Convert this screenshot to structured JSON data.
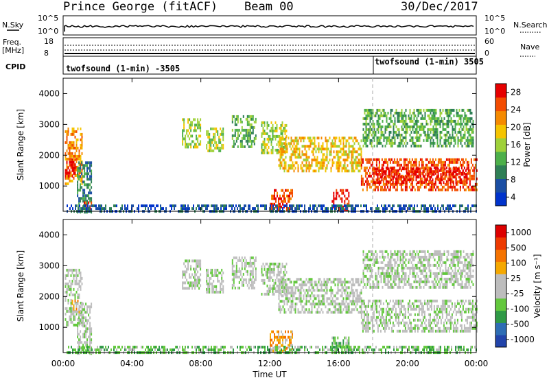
{
  "header": {
    "station": "Prince George (fitACF)",
    "beam": "Beam 00",
    "date": "30/Dec/2017"
  },
  "strips": {
    "nsky": {
      "left_label": "N.Sky",
      "right_label": "N.Search",
      "left_ticks": [
        "10^5",
        "10^0"
      ],
      "right_ticks": [
        "10^5",
        "10^0"
      ]
    },
    "freq": {
      "left_label_1": "Freq.",
      "left_label_2": "[MHz]",
      "right_label": "Nave",
      "left_ticks": [
        "18",
        "8"
      ],
      "right_ticks": [
        "60",
        "0"
      ]
    },
    "cpid": {
      "label": "CPID",
      "mode_1": "twofsound (1-min) -3505",
      "mode_2": "twofsound (1-min) 3505"
    }
  },
  "colors": {
    "power_scale": [
      "#0033cc",
      "#1b4ea3",
      "#2f7f56",
      "#4db04a",
      "#9fd13a",
      "#f5c400",
      "#f58a00",
      "#f34c00",
      "#e60000"
    ],
    "velocity_scale": [
      "#2244aa",
      "#2e6db4",
      "#2f9a46",
      "#63c83d",
      "#bdbdbd",
      "#bdbdbd",
      "#f5a800",
      "#f57300",
      "#ee3a00",
      "#dd0000"
    ],
    "ground_scatter": "#bdbdbd"
  },
  "chart_data": [
    {
      "type": "heatmap",
      "panel": "power",
      "xlabel": "Time UT",
      "ylabel": "Slant Range [km]",
      "colorbar_label": "Power [dB]",
      "colorbar_ticks": [
        "28",
        "24",
        "20",
        "16",
        "12",
        "8",
        "4"
      ],
      "xlim": [
        0,
        24
      ],
      "ylim": [
        180,
        4500
      ],
      "y_ticks": [
        "4000",
        "3000",
        "2000",
        "1000"
      ],
      "x_ticks": [
        "00:00",
        "04:00",
        "08:00",
        "12:00",
        "16:00",
        "20:00",
        "00:00"
      ],
      "regions": [
        {
          "t0": 0.1,
          "t1": 1.1,
          "r0": 1100,
          "r1": 2900,
          "level": 6
        },
        {
          "t0": 0.1,
          "t1": 0.7,
          "r0": 1300,
          "r1": 1900,
          "level": 8
        },
        {
          "t0": 0.8,
          "t1": 1.6,
          "r0": 180,
          "r1": 1800,
          "level": 2
        },
        {
          "t0": 1.2,
          "t1": 1.6,
          "r0": 250,
          "r1": 500,
          "level": 7
        },
        {
          "t0": 6.9,
          "t1": 8.0,
          "r0": 2300,
          "r1": 3200,
          "level": 4
        },
        {
          "t0": 8.3,
          "t1": 9.3,
          "r0": 2100,
          "r1": 2900,
          "level": 4
        },
        {
          "t0": 9.8,
          "t1": 11.2,
          "r0": 2300,
          "r1": 3300,
          "level": 3
        },
        {
          "t0": 11.5,
          "t1": 13.0,
          "r0": 2100,
          "r1": 3100,
          "level": 4
        },
        {
          "t0": 12.5,
          "t1": 17.3,
          "r0": 1500,
          "r1": 2600,
          "level": 5
        },
        {
          "t0": 17.3,
          "t1": 24,
          "r0": 900,
          "r1": 1900,
          "level": 7
        },
        {
          "t0": 18.0,
          "t1": 23.5,
          "r0": 1100,
          "r1": 1600,
          "level": 8
        },
        {
          "t0": 17.4,
          "t1": 23.8,
          "r0": 2300,
          "r1": 3500,
          "level": 3
        },
        {
          "t0": 12.0,
          "t1": 13.3,
          "r0": 200,
          "r1": 900,
          "level": 7
        },
        {
          "t0": 15.6,
          "t1": 16.6,
          "r0": 200,
          "r1": 900,
          "level": 8
        },
        {
          "t0": 0.2,
          "t1": 24,
          "r0": 180,
          "r1": 400,
          "level": 1
        }
      ]
    },
    {
      "type": "heatmap",
      "panel": "velocity",
      "xlabel": "Time UT",
      "ylabel": "Slant Range [km]",
      "colorbar_label": "Velocity [m s⁻¹]",
      "colorbar_ticks": [
        "1000",
        "500",
        "100",
        "25",
        "-25",
        "-100",
        "-500",
        "-1000"
      ],
      "xlim": [
        0,
        24
      ],
      "ylim": [
        180,
        4500
      ],
      "y_ticks": [
        "4000",
        "3000",
        "2000",
        "1000"
      ],
      "x_ticks": [
        "00:00",
        "04:00",
        "08:00",
        "12:00",
        "16:00",
        "20:00",
        "00:00"
      ],
      "regions": [
        {
          "t0": 0.1,
          "t1": 1.1,
          "r0": 1100,
          "r1": 2900,
          "level": 4
        },
        {
          "t0": 0.5,
          "t1": 0.9,
          "r0": 1500,
          "r1": 1900,
          "level": 6
        },
        {
          "t0": 0.8,
          "t1": 1.6,
          "r0": 180,
          "r1": 1800,
          "level": 4
        },
        {
          "t0": 6.9,
          "t1": 8.0,
          "r0": 2300,
          "r1": 3200,
          "level": 4
        },
        {
          "t0": 8.3,
          "t1": 9.3,
          "r0": 2100,
          "r1": 2900,
          "level": 4
        },
        {
          "t0": 9.8,
          "t1": 11.2,
          "r0": 2300,
          "r1": 3300,
          "level": 4
        },
        {
          "t0": 11.5,
          "t1": 13.0,
          "r0": 2100,
          "r1": 3100,
          "level": 4
        },
        {
          "t0": 12.5,
          "t1": 17.3,
          "r0": 1500,
          "r1": 2600,
          "level": 4
        },
        {
          "t0": 17.3,
          "t1": 24,
          "r0": 900,
          "r1": 1900,
          "level": 4
        },
        {
          "t0": 17.4,
          "t1": 23.8,
          "r0": 2300,
          "r1": 3500,
          "level": 4
        },
        {
          "t0": 12.0,
          "t1": 13.3,
          "r0": 200,
          "r1": 900,
          "level": 6
        },
        {
          "t0": 15.6,
          "t1": 16.6,
          "r0": 200,
          "r1": 700,
          "level": 3
        },
        {
          "t0": 0.2,
          "t1": 24,
          "r0": 180,
          "r1": 400,
          "level": 3
        }
      ]
    }
  ]
}
